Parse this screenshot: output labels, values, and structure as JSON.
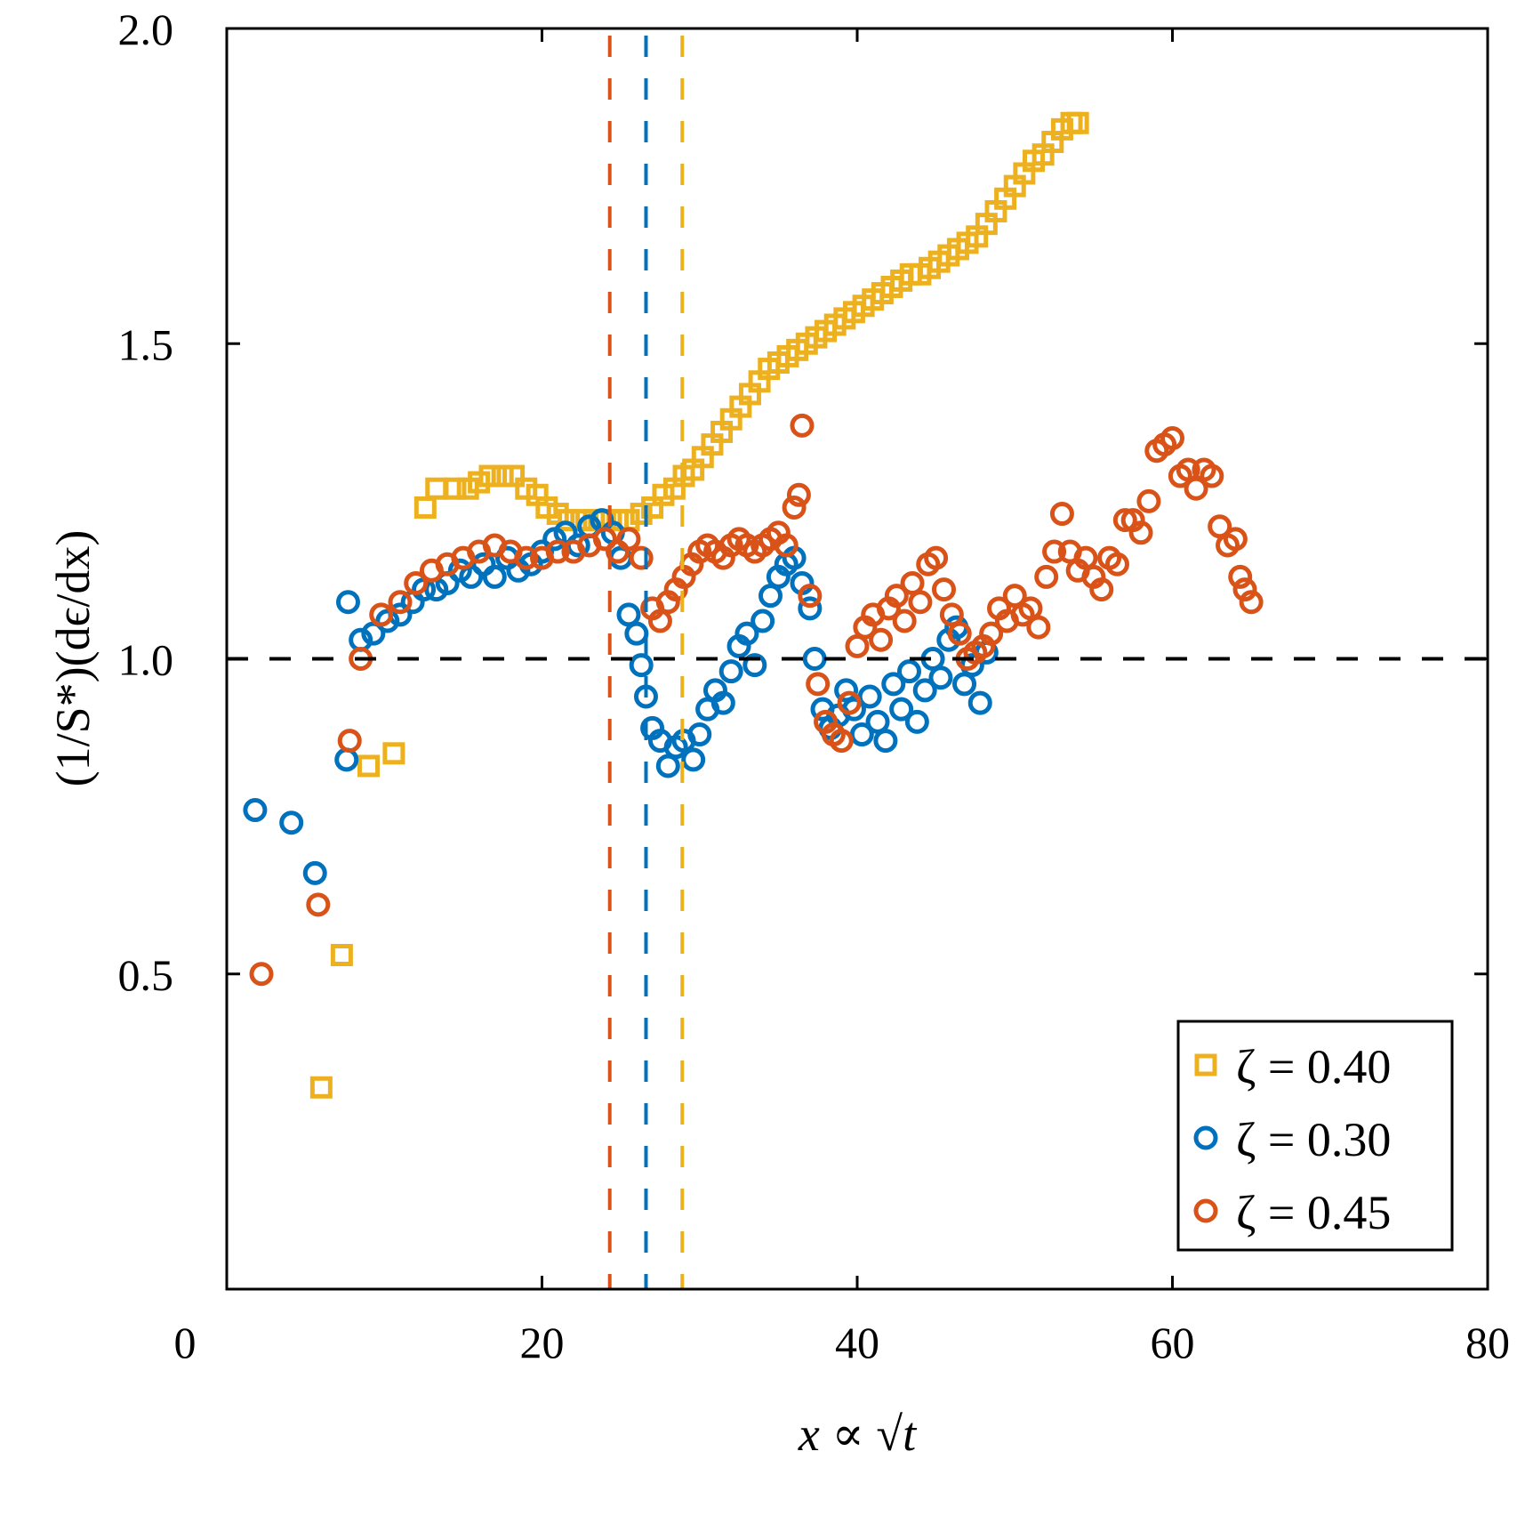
{
  "chart_data": {
    "type": "scatter",
    "title": "",
    "xlabel": "x ∝ √t",
    "ylabel": "(1/S*)(dϵ/dx)",
    "xlim": [
      0,
      80
    ],
    "ylim": [
      0,
      2
    ],
    "xticks": [
      0,
      20,
      40,
      60,
      80
    ],
    "yticks": [
      0.5,
      1.0,
      1.5,
      2.0
    ],
    "xtick_labels": [
      "0",
      "20",
      "40",
      "60",
      "80"
    ],
    "ytick_labels": [
      "0.5",
      "1.0",
      "1.5",
      "2.0"
    ],
    "grid": false,
    "legend_position": "bottom-right",
    "reference_lines": {
      "horizontal": {
        "y": 1.0,
        "color": "#000000",
        "style": "dashed"
      },
      "vertical": [
        {
          "x": 24.3,
          "color": "#D95319",
          "style": "dashed"
        },
        {
          "x": 26.6,
          "color": "#0072BD",
          "style": "dashed"
        },
        {
          "x": 28.9,
          "color": "#EDB120",
          "style": "dashed"
        }
      ]
    },
    "series": [
      {
        "name": "ζ = 0.40",
        "marker": "square",
        "color": "#EDB120",
        "points": [
          [
            6.0,
            0.32
          ],
          [
            7.3,
            0.53
          ],
          [
            9.0,
            0.83
          ],
          [
            10.6,
            0.85
          ],
          [
            12.6,
            1.24
          ],
          [
            13.3,
            1.27
          ],
          [
            14.5,
            1.27
          ],
          [
            15.3,
            1.27
          ],
          [
            16.0,
            1.28
          ],
          [
            16.7,
            1.29
          ],
          [
            17.5,
            1.29
          ],
          [
            18.2,
            1.29
          ],
          [
            19.0,
            1.27
          ],
          [
            19.7,
            1.26
          ],
          [
            20.3,
            1.24
          ],
          [
            21.0,
            1.23
          ],
          [
            21.7,
            1.22
          ],
          [
            22.5,
            1.22
          ],
          [
            23.3,
            1.22
          ],
          [
            24.0,
            1.22
          ],
          [
            24.8,
            1.22
          ],
          [
            25.5,
            1.22
          ],
          [
            26.3,
            1.23
          ],
          [
            27.0,
            1.24
          ],
          [
            27.7,
            1.26
          ],
          [
            28.4,
            1.27
          ],
          [
            29.0,
            1.29
          ],
          [
            29.6,
            1.3
          ],
          [
            30.2,
            1.32
          ],
          [
            30.8,
            1.34
          ],
          [
            31.4,
            1.36
          ],
          [
            32.0,
            1.38
          ],
          [
            32.6,
            1.4
          ],
          [
            33.2,
            1.42
          ],
          [
            33.8,
            1.44
          ],
          [
            34.4,
            1.46
          ],
          [
            35.0,
            1.47
          ],
          [
            35.6,
            1.48
          ],
          [
            36.2,
            1.49
          ],
          [
            36.8,
            1.5
          ],
          [
            37.4,
            1.51
          ],
          [
            38.0,
            1.52
          ],
          [
            38.6,
            1.53
          ],
          [
            39.2,
            1.54
          ],
          [
            39.8,
            1.55
          ],
          [
            40.4,
            1.56
          ],
          [
            41.0,
            1.57
          ],
          [
            41.6,
            1.58
          ],
          [
            42.2,
            1.59
          ],
          [
            42.8,
            1.6
          ],
          [
            43.4,
            1.61
          ],
          [
            44.0,
            1.61
          ],
          [
            44.6,
            1.62
          ],
          [
            45.2,
            1.63
          ],
          [
            45.8,
            1.64
          ],
          [
            46.4,
            1.65
          ],
          [
            47.0,
            1.66
          ],
          [
            47.6,
            1.67
          ],
          [
            48.2,
            1.69
          ],
          [
            48.8,
            1.71
          ],
          [
            49.4,
            1.73
          ],
          [
            50.0,
            1.75
          ],
          [
            50.6,
            1.77
          ],
          [
            51.2,
            1.79
          ],
          [
            51.8,
            1.8
          ],
          [
            52.4,
            1.82
          ],
          [
            53.0,
            1.84
          ],
          [
            53.6,
            1.85
          ],
          [
            54.0,
            1.85
          ]
        ]
      },
      {
        "name": "ζ = 0.30",
        "marker": "circle",
        "color": "#0072BD",
        "points": [
          [
            1.8,
            0.76
          ],
          [
            4.1,
            0.74
          ],
          [
            5.6,
            0.66
          ],
          [
            7.6,
            0.84
          ],
          [
            7.7,
            1.09
          ],
          [
            8.5,
            1.03
          ],
          [
            9.3,
            1.04
          ],
          [
            10.2,
            1.06
          ],
          [
            11.0,
            1.07
          ],
          [
            11.8,
            1.09
          ],
          [
            12.5,
            1.11
          ],
          [
            13.3,
            1.11
          ],
          [
            14.0,
            1.12
          ],
          [
            14.8,
            1.14
          ],
          [
            15.5,
            1.13
          ],
          [
            16.3,
            1.15
          ],
          [
            17.0,
            1.13
          ],
          [
            17.8,
            1.16
          ],
          [
            18.5,
            1.14
          ],
          [
            19.3,
            1.15
          ],
          [
            20.0,
            1.17
          ],
          [
            20.8,
            1.19
          ],
          [
            21.5,
            1.2
          ],
          [
            22.3,
            1.18
          ],
          [
            23.0,
            1.21
          ],
          [
            23.8,
            1.22
          ],
          [
            24.5,
            1.2
          ],
          [
            25.0,
            1.16
          ],
          [
            25.5,
            1.07
          ],
          [
            26.0,
            1.04
          ],
          [
            26.3,
            0.99
          ],
          [
            26.6,
            0.94
          ],
          [
            27.0,
            0.89
          ],
          [
            27.5,
            0.87
          ],
          [
            28.0,
            0.83
          ],
          [
            28.5,
            0.86
          ],
          [
            29.0,
            0.87
          ],
          [
            29.6,
            0.84
          ],
          [
            30.0,
            0.88
          ],
          [
            30.5,
            0.92
          ],
          [
            31.0,
            0.95
          ],
          [
            31.5,
            0.93
          ],
          [
            32.0,
            0.98
          ],
          [
            32.5,
            1.02
          ],
          [
            33.0,
            1.04
          ],
          [
            33.5,
            0.99
          ],
          [
            34.0,
            1.06
          ],
          [
            34.5,
            1.1
          ],
          [
            35.0,
            1.13
          ],
          [
            35.5,
            1.15
          ],
          [
            36.0,
            1.16
          ],
          [
            36.5,
            1.12
          ],
          [
            37.0,
            1.08
          ],
          [
            37.3,
            1.0
          ],
          [
            37.8,
            0.92
          ],
          [
            38.3,
            0.89
          ],
          [
            38.8,
            0.91
          ],
          [
            39.3,
            0.95
          ],
          [
            39.8,
            0.92
          ],
          [
            40.3,
            0.88
          ],
          [
            40.8,
            0.94
          ],
          [
            41.3,
            0.9
          ],
          [
            41.8,
            0.87
          ],
          [
            42.3,
            0.96
          ],
          [
            42.8,
            0.92
          ],
          [
            43.3,
            0.98
          ],
          [
            43.8,
            0.9
          ],
          [
            44.3,
            0.95
          ],
          [
            44.8,
            1.0
          ],
          [
            45.3,
            0.97
          ],
          [
            45.8,
            1.03
          ],
          [
            46.3,
            1.05
          ],
          [
            46.8,
            0.96
          ],
          [
            47.3,
            0.99
          ],
          [
            47.8,
            0.93
          ],
          [
            48.2,
            1.01
          ]
        ]
      },
      {
        "name": "ζ = 0.45",
        "marker": "circle",
        "color": "#D95319",
        "points": [
          [
            2.2,
            0.5
          ],
          [
            5.8,
            0.61
          ],
          [
            7.8,
            0.87
          ],
          [
            8.5,
            1.0
          ],
          [
            9.8,
            1.07
          ],
          [
            11.0,
            1.09
          ],
          [
            12.0,
            1.12
          ],
          [
            13.0,
            1.14
          ],
          [
            14.0,
            1.15
          ],
          [
            15.0,
            1.16
          ],
          [
            16.0,
            1.17
          ],
          [
            17.0,
            1.18
          ],
          [
            18.0,
            1.17
          ],
          [
            19.0,
            1.16
          ],
          [
            20.0,
            1.16
          ],
          [
            21.0,
            1.17
          ],
          [
            22.0,
            1.17
          ],
          [
            23.0,
            1.18
          ],
          [
            24.0,
            1.19
          ],
          [
            24.8,
            1.17
          ],
          [
            25.5,
            1.19
          ],
          [
            26.3,
            1.16
          ],
          [
            27.0,
            1.08
          ],
          [
            27.5,
            1.06
          ],
          [
            28.0,
            1.09
          ],
          [
            28.5,
            1.11
          ],
          [
            29.0,
            1.13
          ],
          [
            29.5,
            1.15
          ],
          [
            30.0,
            1.17
          ],
          [
            30.5,
            1.18
          ],
          [
            31.0,
            1.17
          ],
          [
            31.5,
            1.16
          ],
          [
            32.0,
            1.18
          ],
          [
            32.5,
            1.19
          ],
          [
            33.0,
            1.18
          ],
          [
            33.5,
            1.17
          ],
          [
            34.0,
            1.18
          ],
          [
            34.5,
            1.19
          ],
          [
            35.0,
            1.2
          ],
          [
            35.5,
            1.18
          ],
          [
            36.0,
            1.24
          ],
          [
            36.3,
            1.26
          ],
          [
            36.5,
            1.37
          ],
          [
            37.0,
            1.1
          ],
          [
            37.5,
            0.96
          ],
          [
            38.0,
            0.9
          ],
          [
            38.5,
            0.88
          ],
          [
            39.0,
            0.87
          ],
          [
            39.5,
            0.93
          ],
          [
            40.0,
            1.02
          ],
          [
            40.5,
            1.05
          ],
          [
            41.0,
            1.07
          ],
          [
            41.5,
            1.03
          ],
          [
            42.0,
            1.08
          ],
          [
            42.5,
            1.1
          ],
          [
            43.0,
            1.06
          ],
          [
            43.5,
            1.12
          ],
          [
            44.0,
            1.09
          ],
          [
            44.5,
            1.15
          ],
          [
            45.0,
            1.16
          ],
          [
            45.5,
            1.11
          ],
          [
            46.0,
            1.07
          ],
          [
            46.5,
            1.04
          ],
          [
            47.0,
            1.0
          ],
          [
            47.5,
            1.01
          ],
          [
            48.0,
            1.02
          ],
          [
            48.5,
            1.04
          ],
          [
            49.0,
            1.08
          ],
          [
            49.5,
            1.06
          ],
          [
            50.0,
            1.1
          ],
          [
            50.5,
            1.07
          ],
          [
            51.0,
            1.08
          ],
          [
            51.5,
            1.05
          ],
          [
            52.0,
            1.13
          ],
          [
            52.5,
            1.17
          ],
          [
            53.0,
            1.23
          ],
          [
            53.5,
            1.17
          ],
          [
            54.0,
            1.14
          ],
          [
            54.5,
            1.16
          ],
          [
            55.0,
            1.13
          ],
          [
            55.5,
            1.11
          ],
          [
            56.0,
            1.16
          ],
          [
            56.5,
            1.15
          ],
          [
            57.0,
            1.22
          ],
          [
            57.5,
            1.22
          ],
          [
            58.0,
            1.2
          ],
          [
            58.5,
            1.25
          ],
          [
            59.0,
            1.33
          ],
          [
            59.5,
            1.34
          ],
          [
            60.0,
            1.35
          ],
          [
            60.5,
            1.29
          ],
          [
            61.0,
            1.3
          ],
          [
            61.5,
            1.27
          ],
          [
            62.0,
            1.3
          ],
          [
            62.5,
            1.29
          ],
          [
            63.0,
            1.21
          ],
          [
            63.5,
            1.18
          ],
          [
            64.0,
            1.19
          ],
          [
            64.3,
            1.13
          ],
          [
            64.6,
            1.11
          ],
          [
            65.0,
            1.09
          ]
        ]
      }
    ],
    "legend": [
      {
        "label": "ζ = 0.40",
        "marker": "square",
        "color": "#EDB120"
      },
      {
        "label": "ζ = 0.30",
        "marker": "circle",
        "color": "#0072BD"
      },
      {
        "label": "ζ = 0.45",
        "marker": "circle",
        "color": "#D95319"
      }
    ]
  }
}
